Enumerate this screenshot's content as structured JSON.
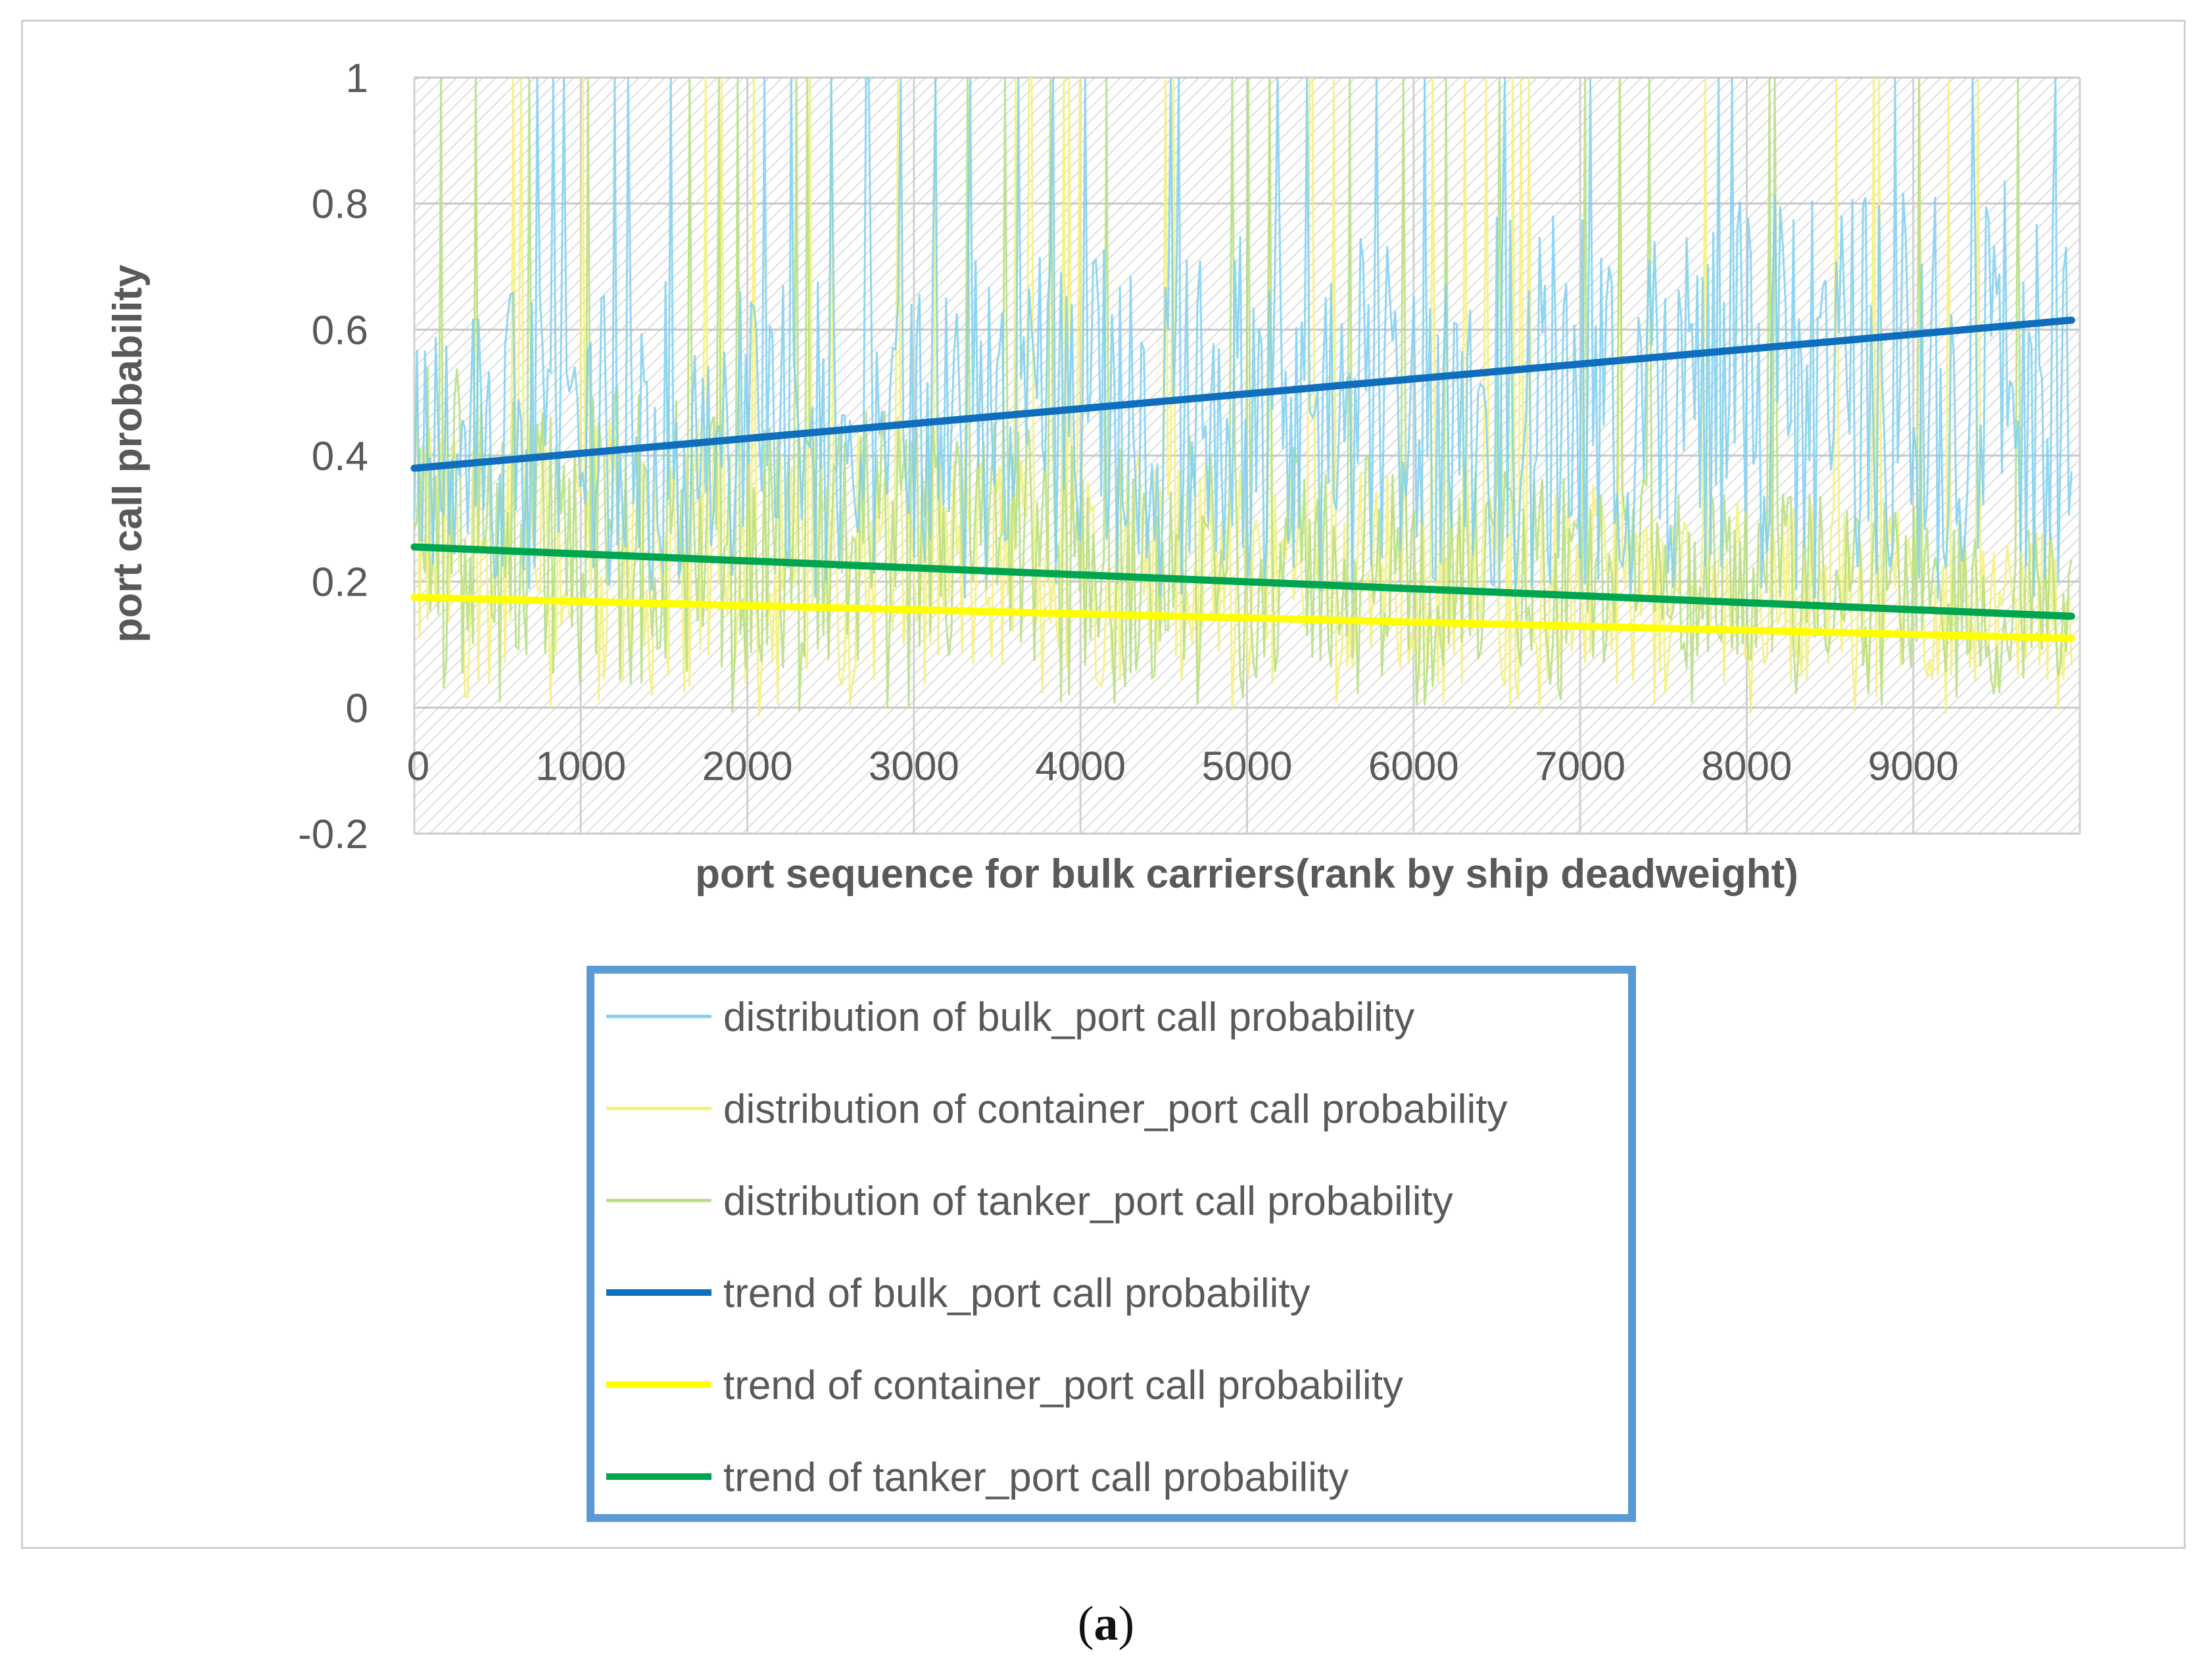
{
  "chart_data": {
    "type": "line",
    "xlabel": "port sequence for bulk carriers(rank by ship deadweight)",
    "ylabel": "port call probability",
    "xlim": [
      0,
      10000
    ],
    "ylim": [
      -0.2,
      1
    ],
    "x_ticks": [
      0,
      1000,
      2000,
      3000,
      4000,
      5000,
      6000,
      7000,
      8000,
      9000
    ],
    "y_ticks": [
      "1",
      "0.8",
      "0.6",
      "0.4",
      "0.2",
      "0",
      "-0.2"
    ],
    "y_tick_values": [
      1,
      0.8,
      0.6,
      0.4,
      0.2,
      0,
      -0.2
    ],
    "grid": true,
    "legend_position": "bottom",
    "series": [
      {
        "name": "distribution of bulk_port call probability",
        "kind": "distribution",
        "color": "#7ecff0",
        "low": [
          0.22,
          0.22
        ],
        "high": [
          0.65,
          0.85
        ],
        "x_range": [
          0,
          9950
        ]
      },
      {
        "name": "distribution of container_port call probability",
        "kind": "distribution",
        "color": "#f5f07a",
        "low": [
          0.03,
          0.04
        ],
        "high": [
          0.5,
          0.3
        ],
        "x_range": [
          0,
          9950
        ]
      },
      {
        "name": "distribution of tanker_port call probability",
        "kind": "distribution",
        "color": "#b5de80",
        "low": [
          0.04,
          0.05
        ],
        "high": [
          0.55,
          0.3
        ],
        "x_range": [
          0,
          9950
        ]
      },
      {
        "name": "trend of bulk_port call probability",
        "kind": "trend",
        "color": "#0f6fbe",
        "x": [
          0,
          9950
        ],
        "y": [
          0.38,
          0.615
        ]
      },
      {
        "name": "trend of container_port call probability",
        "kind": "trend",
        "color": "#ffff00",
        "x": [
          0,
          9950
        ],
        "y": [
          0.175,
          0.11
        ]
      },
      {
        "name": "trend of tanker_port call probability",
        "kind": "trend",
        "color": "#00a550",
        "x": [
          0,
          9950
        ],
        "y": [
          0.255,
          0.145
        ]
      }
    ]
  },
  "caption": {
    "open": "(",
    "letter": "a",
    "close": ")"
  }
}
